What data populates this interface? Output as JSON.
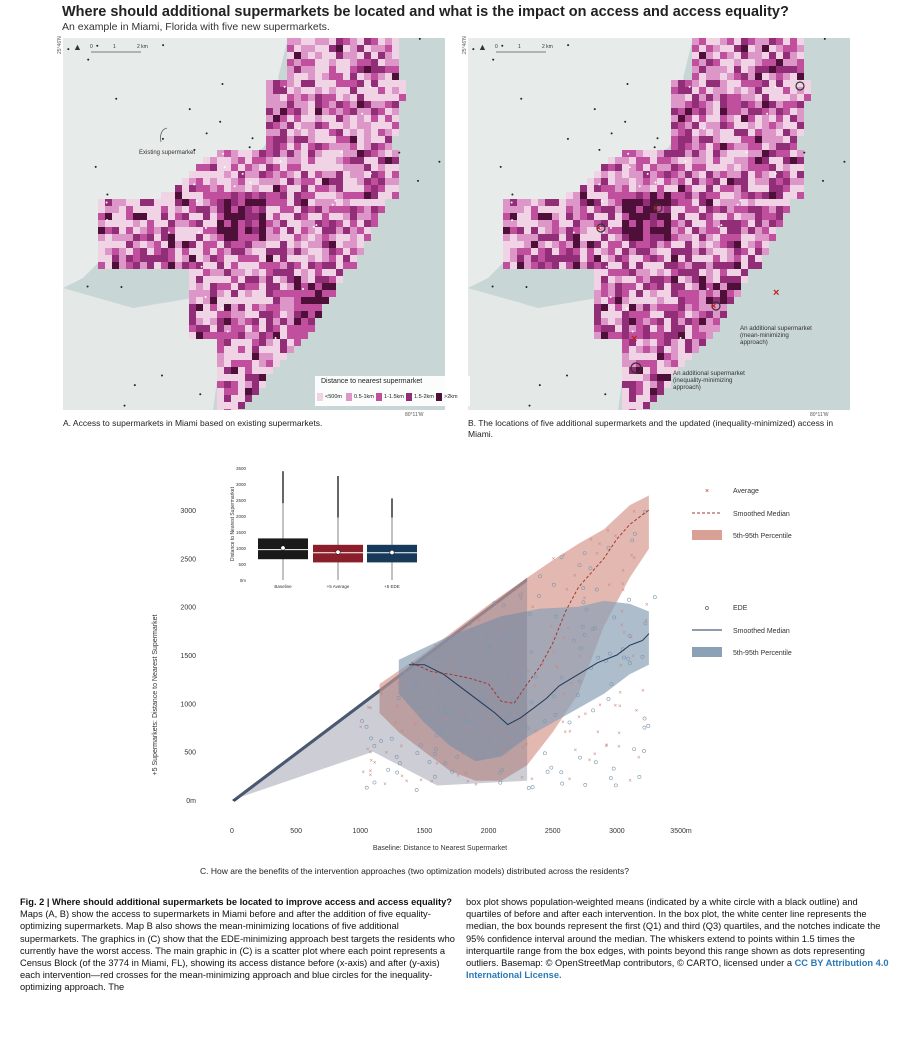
{
  "header": {
    "title": "Where should additional supermarkets be located and what is the impact on access and access equality?",
    "subtitle": "An example in Miami, Florida with five new supermarkets."
  },
  "maps": {
    "scalebar_labels": [
      "0",
      "1",
      "2 km"
    ],
    "coord_lat": "25°46'N",
    "coord_lon": "80°11'W",
    "map_a": {
      "annotation": "Existing supermarket",
      "caption": "A. Access to supermarkets in Miami based on existing supermarkets."
    },
    "map_b": {
      "annotation_mean": "An additional supermarket (mean-minimizing approach)",
      "annotation_ineq": "An additional supermarket (inequality-minimizing approach)",
      "caption": "B. The locations of five additional supermarkets and the updated (inequality-minimized) access in Miami."
    },
    "legend": {
      "title": "Distance to nearest supermarket",
      "items": [
        {
          "label": "<500m",
          "color": "#f0d4e6"
        },
        {
          "label": "0.5-1km",
          "color": "#dd96c8"
        },
        {
          "label": "1-1.5km",
          "color": "#c0509e"
        },
        {
          "label": "1.5-2km",
          "color": "#922d77"
        },
        {
          "label": ">2km",
          "color": "#4e1038"
        }
      ]
    }
  },
  "chart_data": [
    {
      "type": "scatter",
      "xlabel": "Baseline: Distance to Nearest Supermarket",
      "ylabel": "+5 Supermarkets: Distance to Nearest Supermarket",
      "xticks": [
        "0",
        "500",
        "1000",
        "1500",
        "2000",
        "2500",
        "3000",
        "3500m"
      ],
      "yticks": [
        "0m",
        "500",
        "1000",
        "1500",
        "2000",
        "2500",
        "3000"
      ],
      "xlim": [
        -100,
        3550
      ],
      "ylim": [
        -50,
        3420
      ],
      "legend_mean": {
        "marker": "×",
        "avg": "Average",
        "median": "Smoothed Median",
        "band": "5th-95th Percentile"
      },
      "legend_ede": {
        "marker": "o",
        "avg": "EDE",
        "median": "Smoothed Median",
        "band": "5th-95th Percentile"
      },
      "colors": {
        "mean": "#c0655a",
        "mean_band": "#d9a096",
        "ede": "#1f3a5a",
        "ede_band": "#8aa1b6",
        "diagonal": "#203a52"
      },
      "mean_median": [
        [
          1400,
          1420
        ],
        [
          1550,
          1330
        ],
        [
          1700,
          1300
        ],
        [
          1850,
          1260
        ],
        [
          2000,
          1200
        ],
        [
          2100,
          1020
        ],
        [
          2200,
          1000
        ],
        [
          2300,
          1200
        ],
        [
          2400,
          1380
        ],
        [
          2500,
          1620
        ],
        [
          2600,
          1950
        ],
        [
          2700,
          2200
        ],
        [
          2800,
          2350
        ],
        [
          2900,
          2500
        ],
        [
          3000,
          2700
        ],
        [
          3100,
          2850
        ],
        [
          3200,
          2950
        ],
        [
          3250,
          3000
        ]
      ],
      "ede_median": [
        [
          1380,
          1400
        ],
        [
          1500,
          1400
        ],
        [
          1650,
          1300
        ],
        [
          1800,
          1150
        ],
        [
          1950,
          1000
        ],
        [
          2050,
          900
        ],
        [
          2150,
          780
        ],
        [
          2250,
          850
        ],
        [
          2350,
          950
        ],
        [
          2450,
          1050
        ],
        [
          2550,
          1180
        ],
        [
          2700,
          1300
        ],
        [
          2850,
          1420
        ],
        [
          3000,
          1500
        ],
        [
          3100,
          1600
        ],
        [
          3200,
          1650
        ],
        [
          3250,
          1720
        ]
      ],
      "mean_band_upper": [
        [
          1150,
          1200
        ],
        [
          1500,
          1520
        ],
        [
          2000,
          2020
        ],
        [
          2300,
          2300
        ],
        [
          2500,
          2480
        ],
        [
          2700,
          2650
        ],
        [
          2900,
          2800
        ],
        [
          3100,
          3050
        ],
        [
          3250,
          3150
        ]
      ],
      "mean_band_lower": [
        [
          3250,
          2600
        ],
        [
          3100,
          2300
        ],
        [
          2900,
          1800
        ],
        [
          2700,
          1100
        ],
        [
          2500,
          700
        ],
        [
          2300,
          360
        ],
        [
          2100,
          200
        ],
        [
          1900,
          200
        ],
        [
          1700,
          300
        ],
        [
          1500,
          500
        ],
        [
          1300,
          700
        ],
        [
          1150,
          900
        ]
      ],
      "ede_band_upper": [
        [
          1300,
          1450
        ],
        [
          1700,
          1700
        ],
        [
          2100,
          1900
        ],
        [
          2400,
          1980
        ],
        [
          2700,
          2000
        ],
        [
          2900,
          2060
        ],
        [
          3100,
          2030
        ],
        [
          3250,
          1950
        ]
      ],
      "ede_band_lower": [
        [
          3250,
          1400
        ],
        [
          3100,
          1300
        ],
        [
          2900,
          1100
        ],
        [
          2700,
          950
        ],
        [
          2500,
          800
        ],
        [
          2300,
          650
        ],
        [
          2100,
          450
        ],
        [
          1900,
          400
        ],
        [
          1700,
          560
        ],
        [
          1500,
          800
        ],
        [
          1300,
          1100
        ]
      ]
    },
    {
      "type": "box",
      "categories": [
        "Baseline",
        "+5 Average",
        "+5 EDE"
      ],
      "ylabel": "Distance to Nearest Supermarket",
      "yticks": [
        "0m",
        "500",
        "1000",
        "1500",
        "2000",
        "2500",
        "3000",
        "3500"
      ],
      "ylim": [
        0,
        3500
      ],
      "boxes": [
        {
          "q1": 650,
          "median": 950,
          "q3": 1300,
          "mean": 1000,
          "whisker_low": 0,
          "whisker_high": 2400,
          "outlier_max": 3400,
          "color": "#1a1a1a"
        },
        {
          "q1": 550,
          "median": 850,
          "q3": 1100,
          "mean": 870,
          "whisker_low": 0,
          "whisker_high": 1950,
          "outlier_max": 3250,
          "color": "#8b1e2b"
        },
        {
          "q1": 550,
          "median": 850,
          "q3": 1100,
          "mean": 860,
          "whisker_low": 0,
          "whisker_high": 1950,
          "outlier_max": 2550,
          "color": "#173a5a"
        }
      ]
    }
  ],
  "captions": {
    "c": "C. How are the benefits of the intervention approaches (two optimization models) distributed across the residents?",
    "fig_label": "Fig. 2 | Where should additional supermarkets be located to improve access and access equality?",
    "fig_left_rest": "Maps (A, B) show the access to supermarkets in Miami before and after the addition of five equality-optimizing supermarkets. Map B also shows the mean-minimizing locations of five additional supermarkets. The graphics in (C) show that the EDE-minimizing approach best targets the residents who currently have the worst access. The main graphic in (C) is a scatter plot where each point represents a Census Block (of the 3774 in Miami, FL), showing its access distance before (x-axis) and after (y-axis) each intervention—red crosses for the mean-minimizing approach and blue circles for the inequality-optimizing approach. The",
    "fig_right": "box plot shows population-weighted means (indicated by a white circle with a black outline) and quartiles of before and after each intervention. In the box plot, the white center line represents the median, the box bounds represent the first (Q1) and third (Q3) quartiles, and the notches indicate the 95% confidence interval around the median. The whiskers extend to points within 1.5 times the interquartile range from the box edges, with points beyond this range shown as dots representing outliers. Basemap: © OpenStreetMap contributors, © CARTO, licensed under a ",
    "fig_right_link": "CC BY Attribution 4.0 International License."
  }
}
